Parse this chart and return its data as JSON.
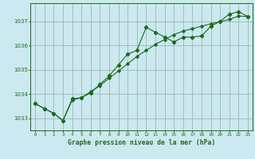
{
  "xlabel": "Graphe pression niveau de la mer (hPa)",
  "bg_color": "#cce8f0",
  "plot_bg_color": "#cce8f0",
  "line_color": "#1a6b1a",
  "grid_color": "#99bbaa",
  "x_values": [
    0,
    1,
    2,
    3,
    4,
    5,
    6,
    7,
    8,
    9,
    10,
    11,
    12,
    13,
    14,
    15,
    16,
    17,
    18,
    19,
    20,
    21,
    22,
    23
  ],
  "y_line1": [
    1033.6,
    1033.4,
    1033.2,
    1032.9,
    1033.8,
    1033.85,
    1034.05,
    1034.4,
    1034.75,
    1035.2,
    1035.65,
    1035.8,
    1036.75,
    1036.55,
    1036.35,
    1036.15,
    1036.35,
    1036.35,
    1036.4,
    1036.8,
    1037.0,
    1037.3,
    1037.4,
    1037.2
  ],
  "y_line2": [
    1033.6,
    1033.4,
    1033.2,
    1032.9,
    1033.75,
    1033.85,
    1034.1,
    1034.35,
    1034.65,
    1034.95,
    1035.25,
    1035.55,
    1035.8,
    1036.05,
    1036.25,
    1036.45,
    1036.6,
    1036.7,
    1036.8,
    1036.9,
    1036.98,
    1037.08,
    1037.22,
    1037.2
  ],
  "ylim_min": 1032.5,
  "ylim_max": 1037.75,
  "yticks": [
    1033,
    1034,
    1035,
    1036,
    1037
  ],
  "xticks": [
    0,
    1,
    2,
    3,
    4,
    5,
    6,
    7,
    8,
    9,
    10,
    11,
    12,
    13,
    14,
    15,
    16,
    17,
    18,
    19,
    20,
    21,
    22,
    23
  ]
}
